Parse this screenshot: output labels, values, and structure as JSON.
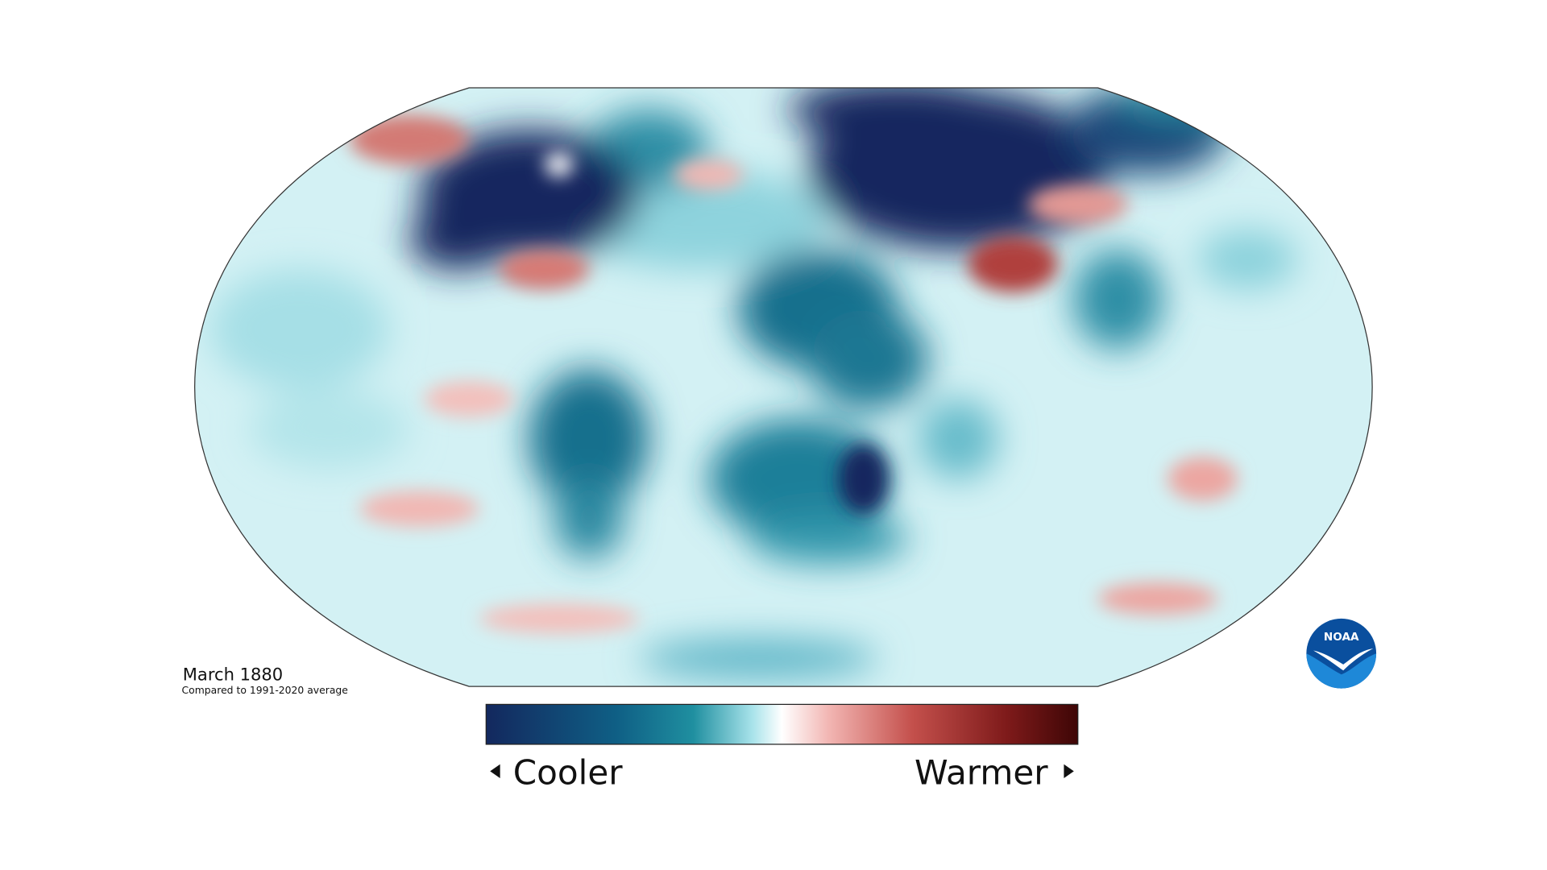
{
  "header": {
    "title": "March 1880",
    "subtitle": "Compared to 1991-2020 average"
  },
  "legend": {
    "low_label": "Cooler",
    "high_label": "Warmer"
  },
  "logo": {
    "text": "NOAA"
  }
}
